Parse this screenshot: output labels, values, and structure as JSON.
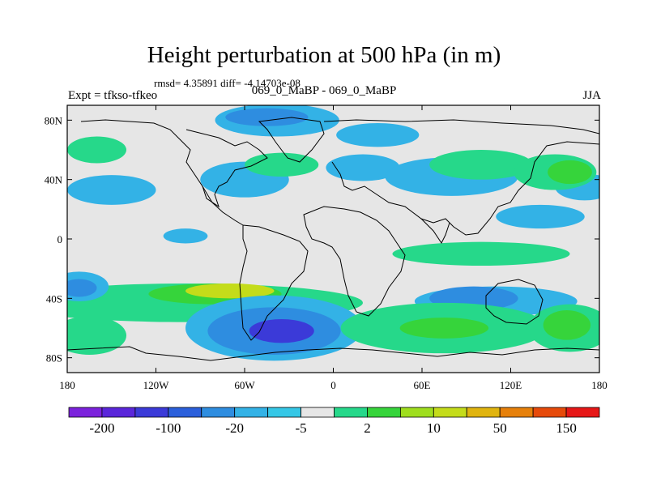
{
  "title": "Height perturbation at 500 hPa (in m)",
  "stats": "rmsd= 4.35891  diff= -4.14703e-08",
  "expt": "Expt = tfkso-tfkeo",
  "subtitle": "069_0_MaBP - 069_0_MaBP",
  "season": "JJA",
  "chart_data": {
    "type": "map-contour",
    "variable": "500 hPa height perturbation",
    "units": "m",
    "lon_range": [
      -180,
      180
    ],
    "lat_range": [
      -90,
      90
    ],
    "x_ticks": [
      {
        "lon": -180,
        "label": "180"
      },
      {
        "lon": -120,
        "label": "120W"
      },
      {
        "lon": -60,
        "label": "60W"
      },
      {
        "lon": 0,
        "label": "0"
      },
      {
        "lon": 60,
        "label": "60E"
      },
      {
        "lon": 120,
        "label": "120E"
      },
      {
        "lon": 180,
        "label": "180"
      }
    ],
    "y_ticks": [
      {
        "lat": 80,
        "label": "80N"
      },
      {
        "lat": 40,
        "label": "40N"
      },
      {
        "lat": 0,
        "label": "0"
      },
      {
        "lat": -40,
        "label": "40S"
      },
      {
        "lat": -80,
        "label": "80S"
      }
    ],
    "colorbar": {
      "colors": [
        "#7b22dc",
        "#5a26da",
        "#3b3ad8",
        "#2b5fdb",
        "#2e8de0",
        "#33b2e6",
        "#35c7e6",
        "#e6e6e6",
        "#26d88a",
        "#36d43b",
        "#9fde1e",
        "#c4dc1a",
        "#e0b40f",
        "#e6800a",
        "#e64a0a",
        "#e61717"
      ],
      "labels": [
        {
          "after_index": 0,
          "text": "-200"
        },
        {
          "after_index": 2,
          "text": "-100"
        },
        {
          "after_index": 4,
          "text": "-20"
        },
        {
          "after_index": 6,
          "text": "-5"
        },
        {
          "after_index": 8,
          "text": "2"
        },
        {
          "after_index": 10,
          "text": "10"
        },
        {
          "after_index": 12,
          "text": "50"
        },
        {
          "after_index": 14,
          "text": "150"
        }
      ]
    },
    "field_blobs": [
      {
        "lon": -38,
        "lat": 80,
        "rx": 42,
        "ry": 11,
        "level": -5
      },
      {
        "lon": -45,
        "lat": 82,
        "rx": 28,
        "ry": 6,
        "level": -20
      },
      {
        "lon": 30,
        "lat": 70,
        "rx": 28,
        "ry": 8,
        "level": -5
      },
      {
        "lon": 20,
        "lat": 48,
        "rx": 25,
        "ry": 9,
        "level": -5
      },
      {
        "lon": 80,
        "lat": 42,
        "rx": 45,
        "ry": 13,
        "level": -5
      },
      {
        "lon": -60,
        "lat": 40,
        "rx": 30,
        "ry": 12,
        "level": -5
      },
      {
        "lon": -150,
        "lat": 33,
        "rx": 30,
        "ry": 10,
        "level": -5
      },
      {
        "lon": 170,
        "lat": 35,
        "rx": 20,
        "ry": 9,
        "level": -5
      },
      {
        "lon": -100,
        "lat": 2,
        "rx": 15,
        "ry": 5,
        "level": -5
      },
      {
        "lon": 100,
        "lat": 50,
        "rx": 35,
        "ry": 10,
        "level": 2
      },
      {
        "lon": -160,
        "lat": 60,
        "rx": 20,
        "ry": 9,
        "level": 2
      },
      {
        "lon": -35,
        "lat": 50,
        "rx": 25,
        "ry": 8,
        "level": 2
      },
      {
        "lon": 150,
        "lat": 45,
        "rx": 28,
        "ry": 12,
        "level": 2
      },
      {
        "lon": 140,
        "lat": 15,
        "rx": 30,
        "ry": 8,
        "level": -5
      },
      {
        "lon": 160,
        "lat": 45,
        "rx": 15,
        "ry": 8,
        "level": 10
      },
      {
        "lon": 100,
        "lat": -10,
        "rx": 60,
        "ry": 8,
        "level": 2
      },
      {
        "lon": 110,
        "lat": -42,
        "rx": 55,
        "ry": 10,
        "level": -5
      },
      {
        "lon": 95,
        "lat": -40,
        "rx": 30,
        "ry": 8,
        "level": -20
      },
      {
        "lon": -100,
        "lat": -43,
        "rx": 120,
        "ry": 13,
        "level": 2
      },
      {
        "lon": -80,
        "lat": -37,
        "rx": 45,
        "ry": 7,
        "level": 10
      },
      {
        "lon": -70,
        "lat": -35,
        "rx": 30,
        "ry": 5,
        "level": 50
      },
      {
        "lon": -172,
        "lat": -32,
        "rx": 20,
        "ry": 10,
        "level": -5
      },
      {
        "lon": -172,
        "lat": -33,
        "rx": 12,
        "ry": 6,
        "level": -20
      },
      {
        "lon": -40,
        "lat": -60,
        "rx": 60,
        "ry": 22,
        "level": -5
      },
      {
        "lon": -40,
        "lat": -62,
        "rx": 45,
        "ry": 16,
        "level": -20
      },
      {
        "lon": -35,
        "lat": -62,
        "rx": 22,
        "ry": 8,
        "level": -100
      },
      {
        "lon": 75,
        "lat": -60,
        "rx": 70,
        "ry": 17,
        "level": 2
      },
      {
        "lon": 75,
        "lat": -60,
        "rx": 30,
        "ry": 7,
        "level": 10
      },
      {
        "lon": 160,
        "lat": -60,
        "rx": 28,
        "ry": 16,
        "level": 2
      },
      {
        "lon": 158,
        "lat": -58,
        "rx": 16,
        "ry": 10,
        "level": 10
      },
      {
        "lon": -165,
        "lat": -65,
        "rx": 25,
        "ry": 13,
        "level": 2
      }
    ]
  }
}
